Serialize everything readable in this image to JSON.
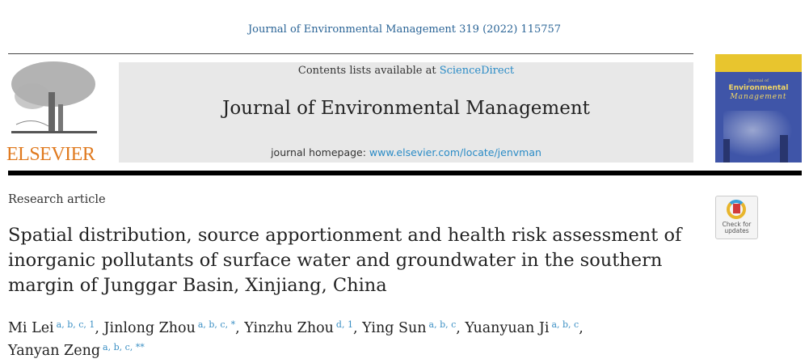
{
  "running_header": "Journal of Environmental Management 319 (2022) 115757",
  "publisher": {
    "logo_text": "ELSEVIER",
    "logo_color": "#e07a1f"
  },
  "banner": {
    "contents_prefix": "Contents lists available at ",
    "contents_link": "ScienceDirect",
    "journal_title": "Journal of Environmental Management",
    "homepage_prefix": "journal homepage: ",
    "homepage_link": "www.elsevier.com/locate/jenvman"
  },
  "cover": {
    "small": "Journal of",
    "line1": "Environmental",
    "line2": "Management"
  },
  "article_type": "Research article",
  "title": "Spatial distribution, source apportionment and health risk assessment of inorganic pollutants of surface water and groundwater in the southern margin of Junggar Basin, Xinjiang, China",
  "authors": [
    {
      "name": "Mi Lei",
      "aff": "a, b, c, 1"
    },
    {
      "name": "Jinlong Zhou",
      "aff": "a, b, c, *"
    },
    {
      "name": "Yinzhu Zhou",
      "aff": "d, 1"
    },
    {
      "name": "Ying Sun",
      "aff": "a, b, c"
    },
    {
      "name": "Yuanyuan Ji",
      "aff": "a, b, c"
    },
    {
      "name": "Yanyan Zeng",
      "aff": "a, b, c, **"
    }
  ],
  "badge": {
    "line1": "Check for",
    "line2": "updates"
  },
  "colors": {
    "link": "#2a8bc6",
    "banner_bg": "#e8e8e8"
  }
}
